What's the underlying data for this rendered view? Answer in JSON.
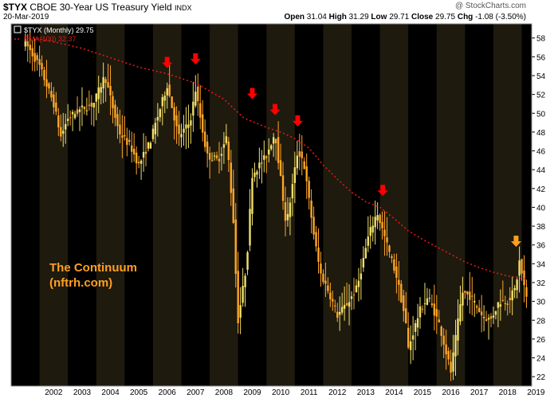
{
  "header": {
    "symbol": "$TYX",
    "description": "CBOE 30-Year US Treasury Yield",
    "exchange": "INDX",
    "date": "20-Mar-2019",
    "copyright": "@ StockCharts.com",
    "open_label": "Open",
    "open": "31.04",
    "high_label": "High",
    "high": "31.29",
    "low_label": "Low",
    "low": "29.71",
    "close_label": "Close",
    "close": "29.75",
    "chg_label": "Chg",
    "chg": "-1.08 (-3.50%)"
  },
  "legend": {
    "series1": "$TYX (Monthly) 29.75",
    "series2": "EMA(100) 32.37"
  },
  "watermark": {
    "line1": "The Continuum",
    "line2": "(nftrh.com)"
  },
  "colors": {
    "background": "#000000",
    "band": "#1e1a0e",
    "candle": "#ffa628",
    "candle_alt": "#f2e06a",
    "ema": "#e01818",
    "arrow_red": "#ff0000",
    "arrow_orange": "#ffa020",
    "axis_text": "#000000"
  },
  "chart_data": {
    "type": "line",
    "title": "$TYX CBOE 30-Year US Treasury Yield INDX",
    "x_ticks": [
      "2002",
      "2003",
      "2004",
      "2005",
      "2006",
      "2007",
      "2008",
      "2009",
      "2010",
      "2011",
      "2012",
      "2013",
      "2014",
      "2015",
      "2016",
      "2017",
      "2018",
      "2019"
    ],
    "y_ticks": [
      22,
      24,
      26,
      28,
      30,
      32,
      34,
      36,
      38,
      40,
      42,
      44,
      46,
      48,
      50,
      52,
      54,
      56,
      58
    ],
    "ylim": [
      21,
      59.5
    ],
    "series": [
      {
        "name": "$TYX (Monthly) 29.75",
        "style": "candlestick-monthly",
        "x": [
          2001.5,
          2002.0,
          2002.5,
          2002.75,
          2003.0,
          2003.5,
          2003.9,
          2004.3,
          2004.8,
          2005.2,
          2005.5,
          2005.9,
          2006.3,
          2006.5,
          2006.9,
          2007.3,
          2007.5,
          2007.9,
          2008.3,
          2008.6,
          2008.9,
          2008.95,
          2009.3,
          2009.5,
          2010.0,
          2010.3,
          2010.7,
          2011.1,
          2011.3,
          2011.7,
          2011.9,
          2012.2,
          2012.5,
          2012.9,
          2013.2,
          2013.6,
          2013.9,
          2014.3,
          2014.6,
          2014.9,
          2015.0,
          2015.4,
          2015.7,
          2016.1,
          2016.5,
          2016.9,
          2017.2,
          2017.6,
          2017.9,
          2018.2,
          2018.5,
          2018.8,
          2018.9,
          2019.2
        ],
        "values": [
          57.5,
          55,
          51,
          47.5,
          49.5,
          50.5,
          51,
          54,
          48,
          46.5,
          44.5,
          47,
          51,
          53,
          47.5,
          49,
          52.5,
          45.5,
          45,
          47.5,
          36,
          27,
          34,
          43.5,
          45.5,
          48,
          38,
          46,
          45,
          36.5,
          33,
          31,
          28.5,
          30,
          31.5,
          37,
          39.5,
          35.5,
          32.5,
          28,
          25,
          29,
          30.5,
          27.5,
          22.5,
          31,
          30.5,
          28.5,
          28,
          30,
          30,
          31.5,
          34.5,
          29.75
        ]
      },
      {
        "name": "EMA(100) 32.37",
        "style": "dotted",
        "x": [
          2001.5,
          2002.5,
          2003.5,
          2004.5,
          2005.5,
          2006.5,
          2007.5,
          2008.5,
          2009.2,
          2010.0,
          2010.5,
          2011.0,
          2011.5,
          2012.0,
          2012.5,
          2013.0,
          2013.5,
          2014.0,
          2014.5,
          2015.0,
          2015.5,
          2016.0,
          2016.5,
          2017.0,
          2017.5,
          2018.0,
          2018.5,
          2019.0,
          2019.2
        ],
        "values": [
          58.2,
          57.6,
          56.9,
          55.9,
          54.9,
          54.2,
          53.2,
          51.5,
          49.5,
          48.5,
          48.0,
          47.3,
          46.3,
          44.5,
          43.0,
          41.6,
          40.6,
          40.0,
          38.8,
          37.5,
          36.6,
          35.8,
          35.0,
          34.2,
          33.6,
          33.1,
          32.7,
          32.45,
          32.37
        ]
      }
    ],
    "markers": [
      {
        "x": 2006.5,
        "y": 54.8,
        "color": "red"
      },
      {
        "x": 2007.5,
        "y": 55.2,
        "color": "red"
      },
      {
        "x": 2009.5,
        "y": 51.5,
        "color": "red"
      },
      {
        "x": 2010.3,
        "y": 49.8,
        "color": "red"
      },
      {
        "x": 2011.1,
        "y": 48.6,
        "color": "red"
      },
      {
        "x": 2014.1,
        "y": 41.2,
        "color": "red"
      },
      {
        "x": 2018.8,
        "y": 35.8,
        "color": "orange"
      }
    ],
    "grid": "alternating-year-bands",
    "legend_position": "top-left"
  }
}
